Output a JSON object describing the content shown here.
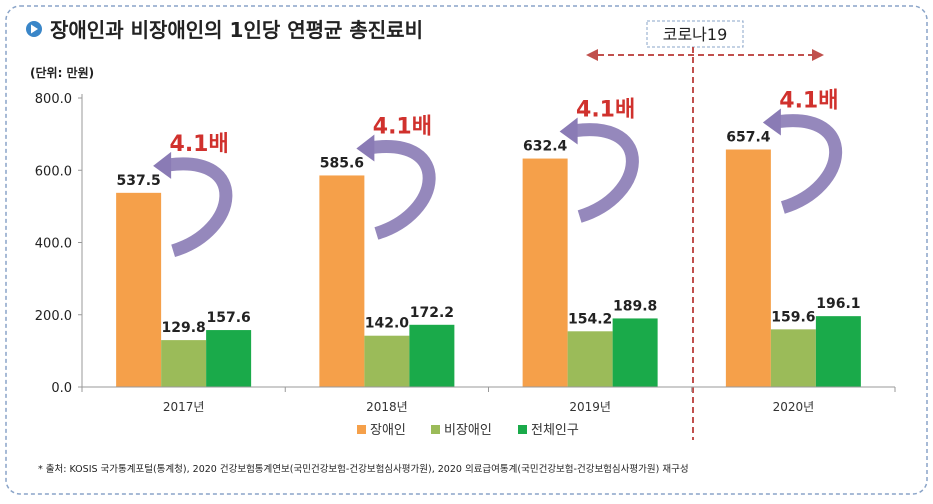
{
  "title": "장애인과 비장애인의 1인당 연평균 총진료비",
  "unit": "(단위: 만원)",
  "covid_label": "코로나19",
  "source": "* 출처: KOSIS 국가통계포털(통계청), 2020 건강보험통계연보(국민건강보험-건강보험심사평가원), 2020 의료급여통계(국민건강보험-건강보험심사평가원) 재구성",
  "colors": {
    "disabled": "#f5a04a",
    "non_disabled": "#9bbb59",
    "total": "#1aaa4a",
    "ratio_text": "#d0312d",
    "arrow": "#8a7bb5",
    "covid_arrow": "#c0504d",
    "frame": "#8aa4c8",
    "title_icon": "#3a86c8"
  },
  "chart_data": {
    "type": "bar",
    "categories": [
      "2017년",
      "2018년",
      "2019년",
      "2020년"
    ],
    "series": [
      {
        "name": "장애인",
        "values": [
          537.5,
          585.6,
          632.4,
          657.4
        ]
      },
      {
        "name": "비장애인",
        "values": [
          129.8,
          142.0,
          154.2,
          159.6
        ]
      },
      {
        "name": "전체인구",
        "values": [
          157.6,
          172.2,
          189.8,
          196.1
        ]
      }
    ],
    "value_labels": [
      [
        "537.5",
        "585.6",
        "632.4",
        "657.4"
      ],
      [
        "129.8",
        "142.0",
        "154.2",
        "159.6"
      ],
      [
        "157.6",
        "172.2",
        "189.8",
        "196.1"
      ]
    ],
    "ratio_labels": [
      "4.1배",
      "4.1배",
      "4.1배",
      "4.1배"
    ],
    "yticks": [
      "0.0",
      "200.0",
      "400.0",
      "600.0",
      "800.0"
    ],
    "ytick_values": [
      0,
      200,
      400,
      600,
      800
    ],
    "ylim": [
      0,
      800
    ],
    "legend_position": "bottom",
    "grid": false
  }
}
